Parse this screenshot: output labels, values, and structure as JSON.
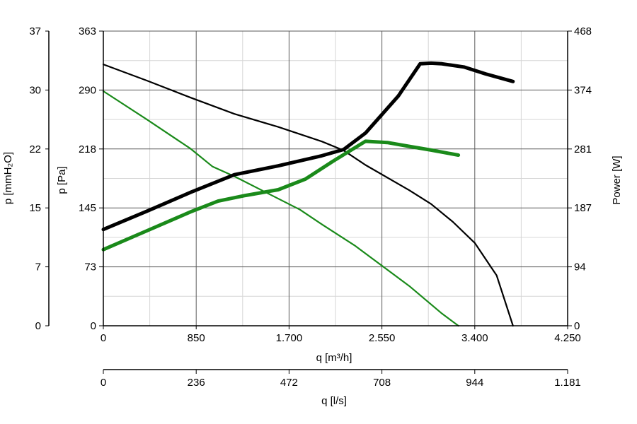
{
  "chart_data": {
    "type": "line",
    "xlabel": "q [m³/h]",
    "xlabel_secondary": "q [l/s]",
    "ylabel_left_outer": "p [mmH₂O]",
    "ylabel_left": "p [Pa]",
    "ylabel_right": "Power [W]",
    "grid": true,
    "x_ticks": [
      "0",
      "850",
      "1.700",
      "2.550",
      "3.400",
      "4.250"
    ],
    "x_secondary_ticks": [
      "0",
      "236",
      "472",
      "708",
      "944",
      "1.181"
    ],
    "y_left_ticks": [
      "0",
      "73",
      "145",
      "218",
      "290",
      "363"
    ],
    "y_left_outer_ticks": [
      "0",
      "7",
      "15",
      "22",
      "30",
      "37"
    ],
    "y_right_ticks": [
      "0",
      "94",
      "187",
      "281",
      "374",
      "468"
    ],
    "xlim": [
      0,
      4250
    ],
    "ylim_pressure": [
      0,
      363
    ],
    "ylim_power": [
      0,
      468
    ],
    "colors": {
      "black": "#000000",
      "green": "#1a8a1a",
      "grid_major": "#5a5a5a",
      "grid_minor": "#d6d6d6"
    },
    "series": [
      {
        "axis": "pressure",
        "color": "#000000",
        "weight": "thin",
        "x": [
          0,
          400,
          800,
          1200,
          1600,
          2000,
          2200,
          2400,
          2800,
          3000,
          3200,
          3400,
          3600,
          3750
        ],
        "y": [
          322,
          302,
          281,
          261,
          245,
          227,
          216,
          198,
          167,
          150,
          128,
          102,
          62,
          0
        ]
      },
      {
        "axis": "pressure",
        "color": "#1a8a1a",
        "weight": "thin",
        "x": [
          0,
          400,
          800,
          1000,
          1200,
          1800,
          2000,
          2300,
          2800,
          3100,
          3250
        ],
        "y": [
          289,
          254,
          218,
          196,
          184,
          143,
          125,
          99,
          49,
          15,
          0
        ]
      },
      {
        "axis": "power",
        "color": "#000000",
        "weight": "thick",
        "x": [
          0,
          400,
          800,
          1200,
          1600,
          2000,
          2200,
          2400,
          2700,
          2900,
          3000,
          3100,
          3300,
          3500,
          3750
        ],
        "y": [
          153,
          182,
          212,
          240,
          254,
          270,
          280,
          306,
          365,
          416,
          417,
          416,
          411,
          400,
          388
        ]
      },
      {
        "axis": "power",
        "color": "#1a8a1a",
        "weight": "thick",
        "x": [
          0,
          400,
          800,
          1050,
          1300,
          1600,
          1850,
          2100,
          2400,
          2600,
          2800,
          3000,
          3250
        ],
        "y": [
          121,
          151,
          181,
          198,
          207,
          216,
          233,
          261,
          293,
          291,
          285,
          279,
          271
        ]
      }
    ]
  }
}
